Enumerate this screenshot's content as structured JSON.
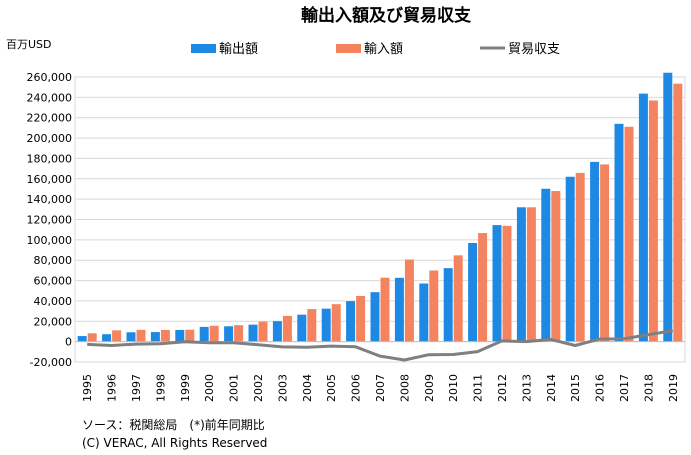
{
  "chart_data": {
    "type": "bar",
    "title": "輸出入額及び貿易収支",
    "ylabel": "百万USD",
    "xlabel": "",
    "ylim": [
      -20000,
      260000
    ],
    "yticks": [
      -20000,
      0,
      20000,
      40000,
      60000,
      80000,
      100000,
      120000,
      140000,
      160000,
      180000,
      200000,
      220000,
      240000,
      260000
    ],
    "ytick_labels": [
      "-20,000",
      "0",
      "20,000",
      "40,000",
      "60,000",
      "80,000",
      "100,000",
      "120,000",
      "140,000",
      "160,000",
      "180,000",
      "200,000",
      "220,000",
      "240,000",
      "260,000"
    ],
    "categories": [
      "1995",
      "1996",
      "1997",
      "1998",
      "1999",
      "2000",
      "2001",
      "2002",
      "2003",
      "2004",
      "2005",
      "2006",
      "2007",
      "2008",
      "2009",
      "2010",
      "2011",
      "2012",
      "2013",
      "2014",
      "2015",
      "2016",
      "2017",
      "2018",
      "2019"
    ],
    "series": [
      {
        "name": "輸出額",
        "type": "bar",
        "color": "#1e88e5",
        "values": [
          5500,
          7300,
          9200,
          9400,
          11500,
          14500,
          15100,
          16700,
          20100,
          26500,
          32400,
          39800,
          48600,
          62700,
          57100,
          72200,
          96900,
          114500,
          132000,
          150200,
          162000,
          176600,
          214000,
          243700,
          264200
        ]
      },
      {
        "name": "輸入額",
        "type": "bar",
        "color": "#f4845f",
        "values": [
          8200,
          11100,
          11600,
          11500,
          11700,
          15600,
          16200,
          19700,
          25300,
          32000,
          36800,
          44900,
          62800,
          80700,
          69900,
          84800,
          106700,
          113800,
          132000,
          148000,
          165800,
          174100,
          211100,
          236900,
          253400
        ]
      },
      {
        "name": "貿易収支",
        "type": "line",
        "color": "#7f7f7f",
        "values": [
          -2700,
          -3800,
          -2400,
          -2100,
          -200,
          -1100,
          -1100,
          -3000,
          -5200,
          -5500,
          -4400,
          -5100,
          -14200,
          -18000,
          -12800,
          -12600,
          -9800,
          700,
          0,
          2200,
          -3800,
          2500,
          2900,
          6800,
          10800
        ]
      }
    ],
    "legend_position": "top",
    "grid": true,
    "source_note": "ソース：税関総局　(*)前年同期比",
    "copyright": "(C) VERAC, All Rights Reserved"
  }
}
